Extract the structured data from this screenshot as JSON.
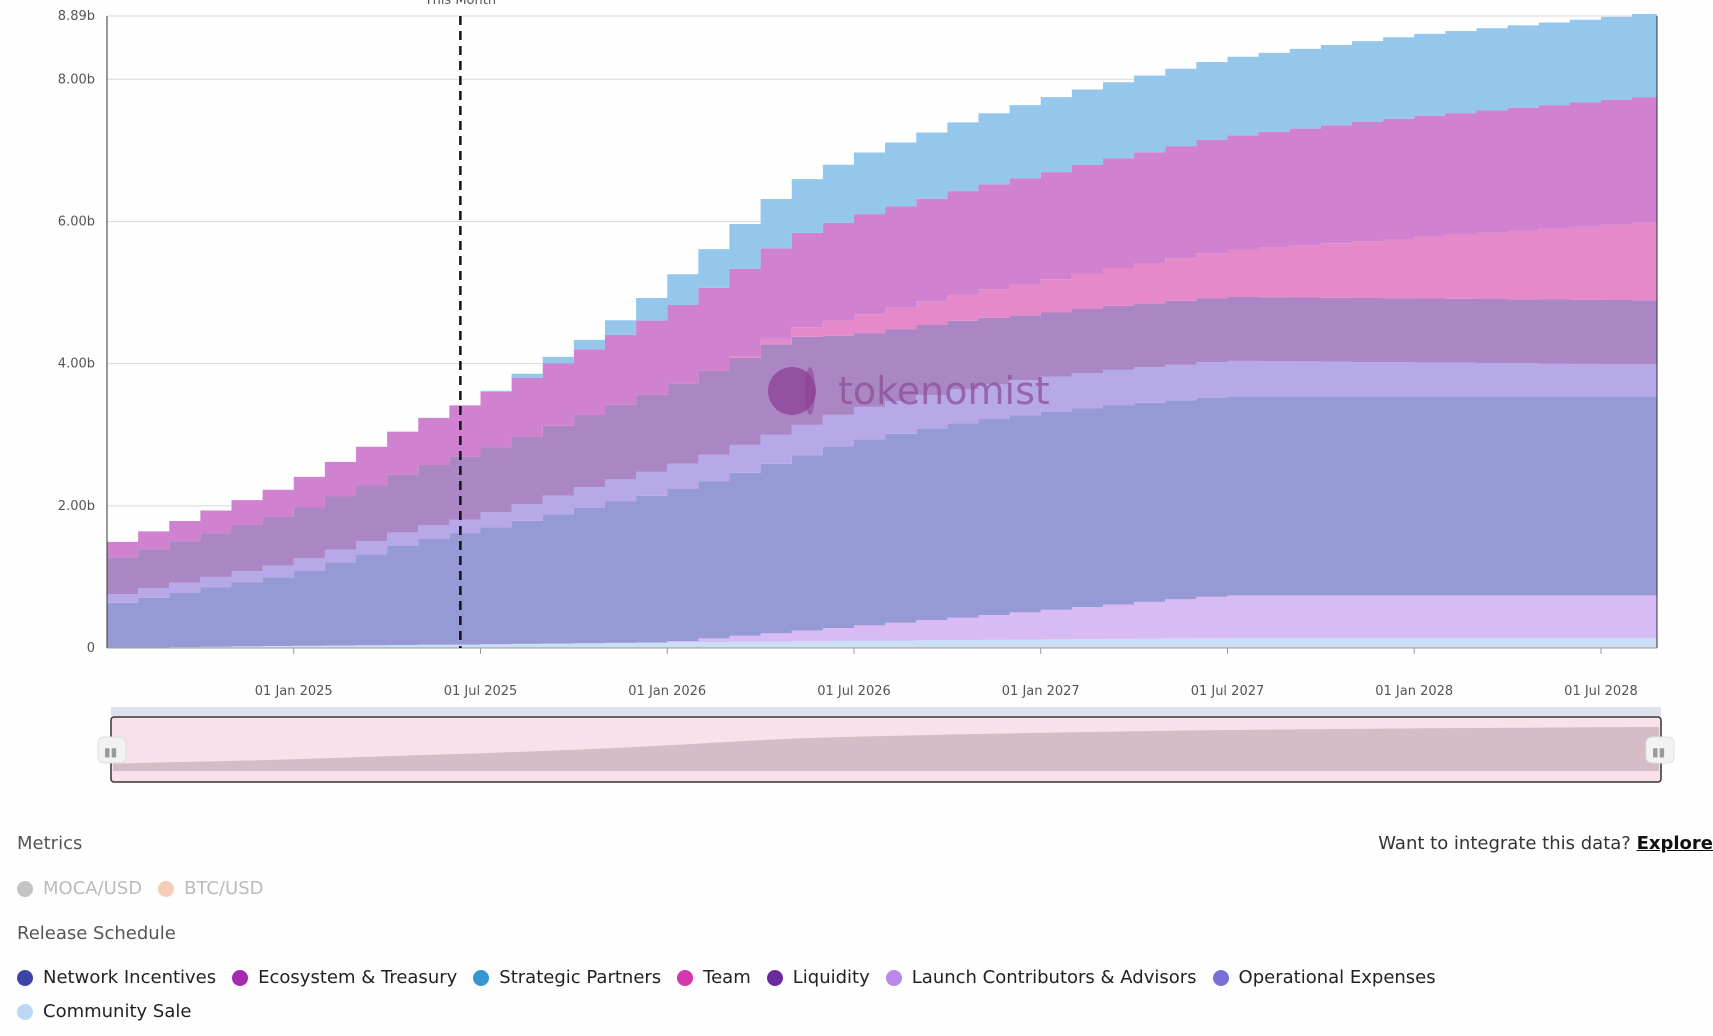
{
  "chart_data": {
    "type": "area",
    "stacked": true,
    "title": "",
    "xlabel": "",
    "ylabel": "",
    "y_ticks": [
      {
        "value": 0,
        "label": "0"
      },
      {
        "value": 2.0,
        "label": "2.00b"
      },
      {
        "value": 4.0,
        "label": "4.00b"
      },
      {
        "value": 6.0,
        "label": "6.00b"
      },
      {
        "value": 8.0,
        "label": "8.00b"
      },
      {
        "value": 8.89,
        "label": "8.89b"
      }
    ],
    "ylim": [
      0,
      8.89
    ],
    "x_range_months": [
      -6,
      43.8
    ],
    "x_ticks": [
      {
        "month": 0,
        "label": "01 Jan 2025"
      },
      {
        "month": 6,
        "label": "01 Jul 2025"
      },
      {
        "month": 12,
        "label": "01 Jan 2026"
      },
      {
        "month": 18,
        "label": "01 Jul 2026"
      },
      {
        "month": 24,
        "label": "01 Jan 2027"
      },
      {
        "month": 30,
        "label": "01 Jul 2027"
      },
      {
        "month": 36,
        "label": "01 Jan 2028"
      },
      {
        "month": 42,
        "label": "01 Jul 2028"
      }
    ],
    "this_month_marker": {
      "month": 5,
      "label": "This Month"
    },
    "series": [
      {
        "name": "Community Sale",
        "color": "#c7dcf5",
        "points": [
          [
            -6,
            0
          ],
          [
            0,
            0.03
          ],
          [
            6,
            0.05
          ],
          [
            12,
            0.08
          ],
          [
            18,
            0.1
          ],
          [
            24,
            0.12
          ],
          [
            30,
            0.14
          ],
          [
            43.8,
            0.14
          ]
        ]
      },
      {
        "name": "Launch Contributors & Advisors",
        "color": "#d6b6f3",
        "points": [
          [
            -6,
            0
          ],
          [
            12,
            0
          ],
          [
            18,
            0.2
          ],
          [
            24,
            0.4
          ],
          [
            30,
            0.6
          ],
          [
            43.8,
            0.6
          ]
        ]
      },
      {
        "name": "Operational Expenses",
        "color": "#8f95d3",
        "points": [
          [
            -6,
            0.6
          ],
          [
            0,
            1.0
          ],
          [
            4,
            1.45
          ],
          [
            6,
            1.6
          ],
          [
            10,
            1.95
          ],
          [
            14,
            2.25
          ],
          [
            18,
            2.6
          ],
          [
            22,
            2.75
          ],
          [
            26,
            2.8
          ],
          [
            30,
            2.8
          ],
          [
            43.8,
            2.8
          ]
        ]
      },
      {
        "name": "Network Incentives",
        "color": "#b3a4e6",
        "points": [
          [
            -6,
            0.12
          ],
          [
            0,
            0.17
          ],
          [
            6,
            0.2
          ],
          [
            12,
            0.35
          ],
          [
            18,
            0.45
          ],
          [
            24,
            0.5
          ],
          [
            30,
            0.5
          ],
          [
            43.8,
            0.45
          ]
        ]
      },
      {
        "name": "Liquidity",
        "color": "#a680c2",
        "points": [
          [
            -6,
            0.5
          ],
          [
            0,
            0.7
          ],
          [
            6,
            0.9
          ],
          [
            12,
            1.1
          ],
          [
            16,
            1.3
          ],
          [
            18,
            1.05
          ],
          [
            24,
            0.9
          ],
          [
            30,
            0.9
          ],
          [
            43.8,
            0.9
          ]
        ]
      },
      {
        "name": "Team",
        "color": "#e583c8",
        "points": [
          [
            -6,
            0
          ],
          [
            14,
            0
          ],
          [
            16,
            0.1
          ],
          [
            18,
            0.25
          ],
          [
            24,
            0.45
          ],
          [
            30,
            0.65
          ],
          [
            36,
            0.85
          ],
          [
            43.8,
            1.1
          ]
        ]
      },
      {
        "name": "Ecosystem & Treasury",
        "color": "#cd7acc",
        "points": [
          [
            -6,
            0.2
          ],
          [
            0,
            0.4
          ],
          [
            6,
            0.75
          ],
          [
            10,
            0.95
          ],
          [
            14,
            1.2
          ],
          [
            18,
            1.4
          ],
          [
            24,
            1.5
          ],
          [
            30,
            1.6
          ],
          [
            36,
            1.7
          ],
          [
            43.8,
            1.77
          ]
        ]
      },
      {
        "name": "Strategic Partners",
        "color": "#8ec4ea",
        "points": [
          [
            -6,
            0
          ],
          [
            6,
            0
          ],
          [
            10,
            0.15
          ],
          [
            14,
            0.6
          ],
          [
            18,
            0.85
          ],
          [
            24,
            1.05
          ],
          [
            30,
            1.1
          ],
          [
            36,
            1.15
          ],
          [
            43.8,
            1.17
          ]
        ]
      }
    ]
  },
  "watermark": {
    "brand": "tokenomist"
  },
  "navigator": {
    "color": "#d6bcc6",
    "range_label": "full"
  },
  "metrics": {
    "title": "Metrics",
    "items": [
      {
        "label": "MOCA/USD",
        "color": "#c4c4c4"
      },
      {
        "label": "BTC/USD",
        "color": "#f5cdb4"
      }
    ]
  },
  "integrate": {
    "text": "Want to integrate this data?",
    "link": "Explore"
  },
  "release_schedule": {
    "title": "Release Schedule",
    "row1": [
      {
        "label": "Network Incentives",
        "color": "#3d44a6"
      },
      {
        "label": "Ecosystem & Treasury",
        "color": "#a42ab0"
      },
      {
        "label": "Strategic Partners",
        "color": "#3596d3"
      },
      {
        "label": "Team",
        "color": "#d436ad"
      },
      {
        "label": "Liquidity",
        "color": "#6a2a9c"
      },
      {
        "label": "Launch Contributors & Advisors",
        "color": "#b889ea"
      },
      {
        "label": "Operational Expenses",
        "color": "#7b6ed8"
      }
    ],
    "row2": [
      {
        "label": "Community Sale",
        "color": "#bcd7f4"
      }
    ]
  }
}
